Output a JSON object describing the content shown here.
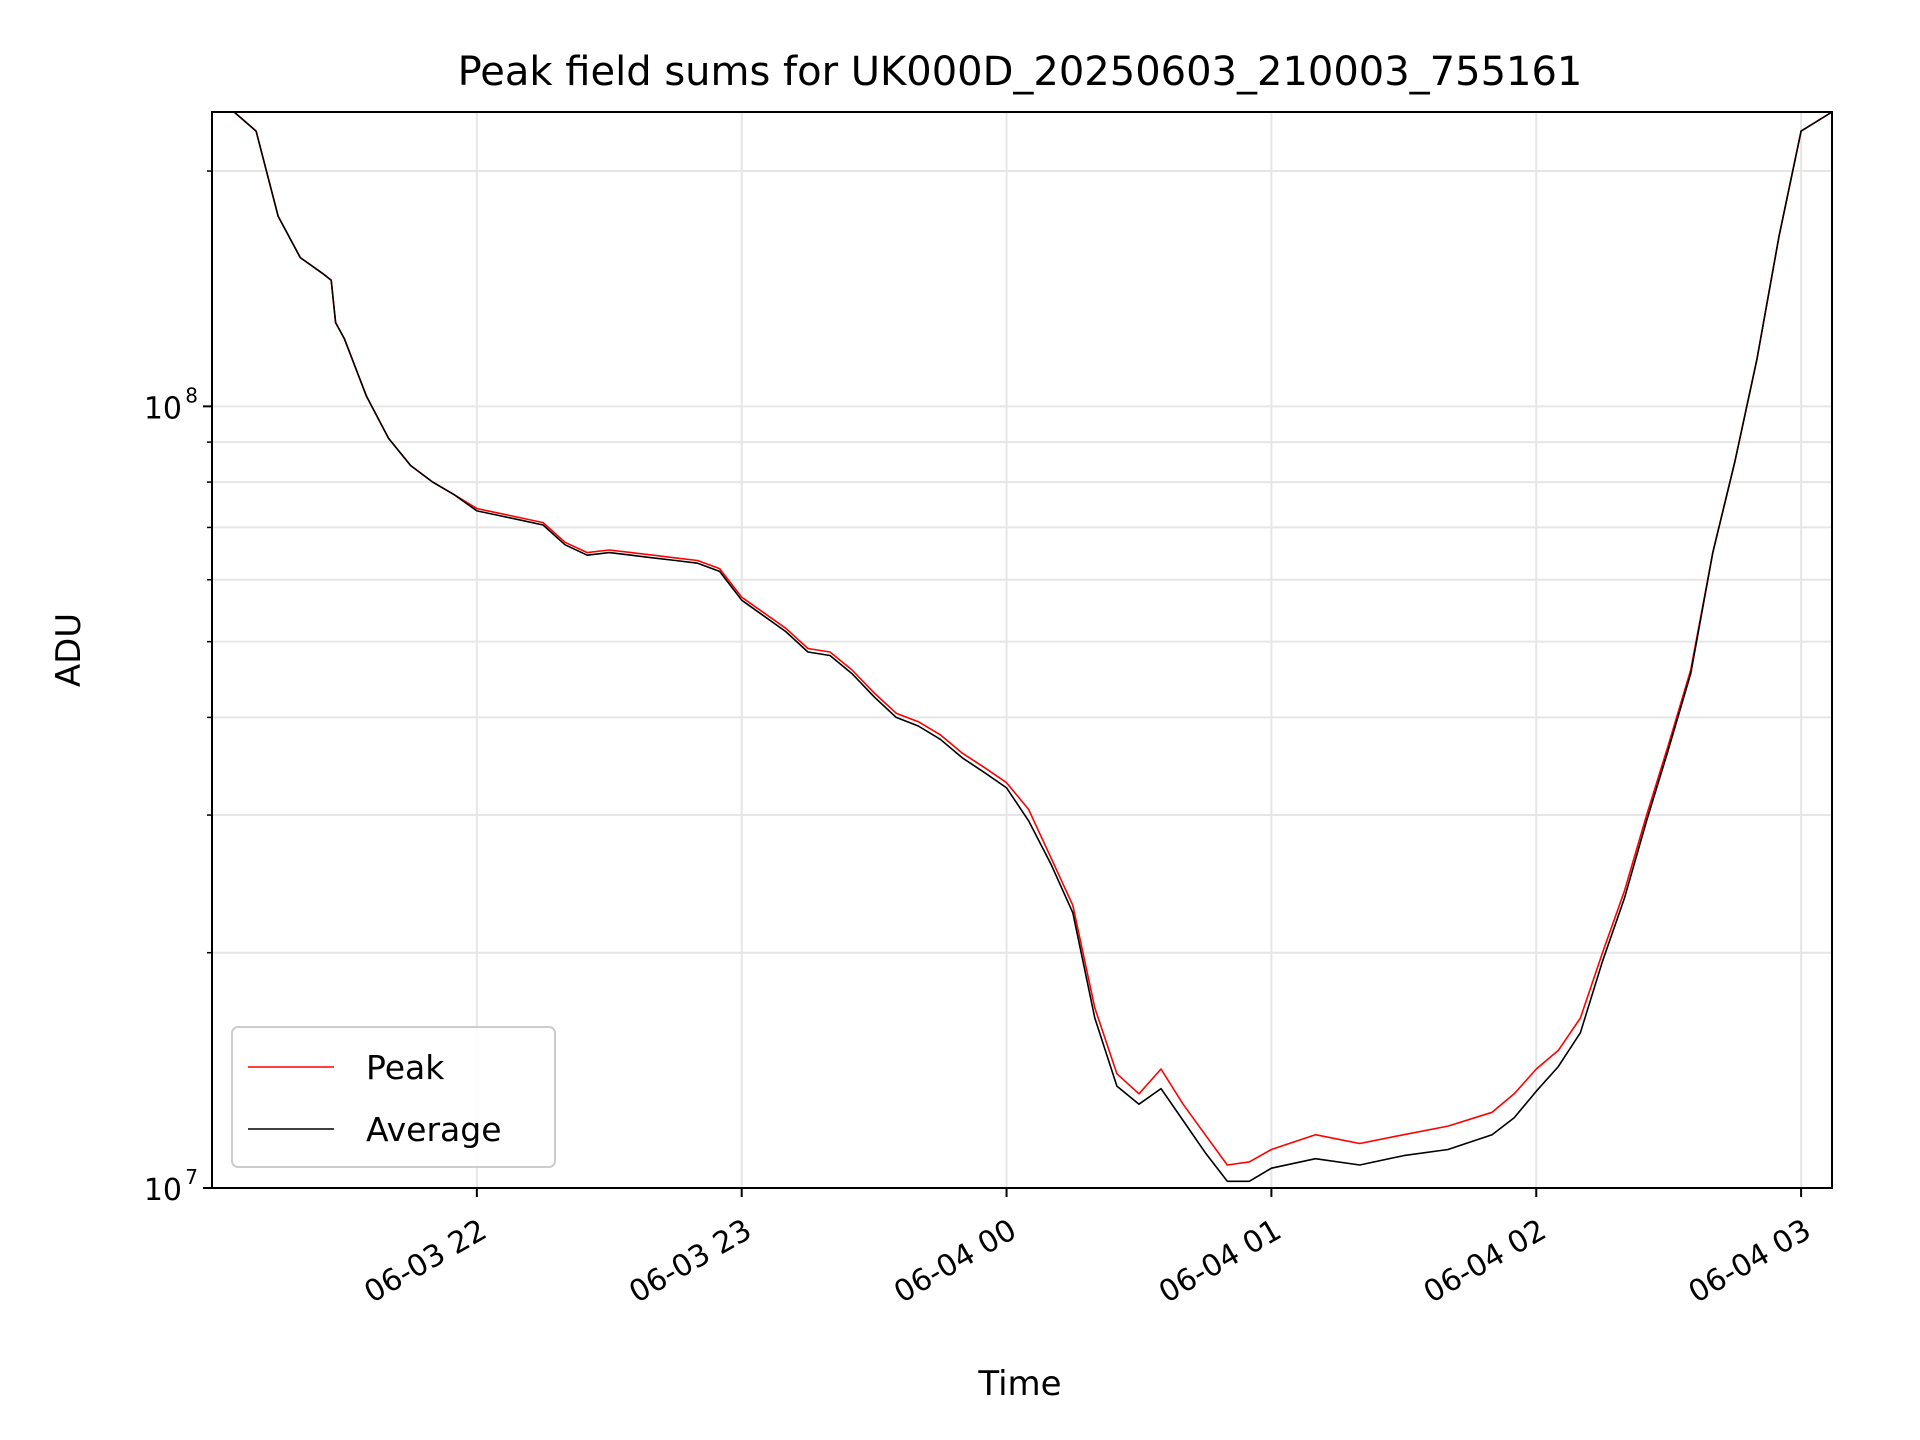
{
  "chart_data": {
    "type": "line",
    "title": "Peak field sums for UK000D_20250603_210003_755161",
    "xlabel": "Time",
    "ylabel": "ADU",
    "y_scale": "log",
    "ylim": [
      10000000,
      238000000
    ],
    "xlim": [
      "2025-06-03 21:00",
      "2025-06-04 03:07"
    ],
    "grid": true,
    "legend_position": "lower-left",
    "x_ticks": [
      {
        "label": "06-03 22",
        "time": "2025-06-03 22:00"
      },
      {
        "label": "06-03 23",
        "time": "2025-06-03 23:00"
      },
      {
        "label": "06-04 00",
        "time": "2025-06-04 00:00"
      },
      {
        "label": "06-04 01",
        "time": "2025-06-04 01:00"
      },
      {
        "label": "06-04 02",
        "time": "2025-06-04 02:00"
      },
      {
        "label": "06-04 03",
        "time": "2025-06-04 03:00"
      }
    ],
    "y_ticks": [
      {
        "base": "10",
        "exp": "7",
        "value": 10000000
      },
      {
        "base": "10",
        "exp": "8",
        "value": 100000000
      }
    ],
    "series": [
      {
        "name": "Peak",
        "color": "#ff0000",
        "x": [
          "2025-06-03 21:00",
          "2025-06-03 21:05",
          "2025-06-03 21:10",
          "2025-06-03 21:15",
          "2025-06-03 21:20",
          "2025-06-03 21:25",
          "2025-06-03 21:27",
          "2025-06-03 21:28",
          "2025-06-03 21:30",
          "2025-06-03 21:35",
          "2025-06-03 21:40",
          "2025-06-03 21:45",
          "2025-06-03 21:50",
          "2025-06-03 21:55",
          "2025-06-03 22:00",
          "2025-06-03 22:05",
          "2025-06-03 22:10",
          "2025-06-03 22:15",
          "2025-06-03 22:20",
          "2025-06-03 22:25",
          "2025-06-03 22:30",
          "2025-06-03 22:35",
          "2025-06-03 22:40",
          "2025-06-03 22:45",
          "2025-06-03 22:50",
          "2025-06-03 22:55",
          "2025-06-03 23:00",
          "2025-06-03 23:10",
          "2025-06-03 23:15",
          "2025-06-03 23:20",
          "2025-06-03 23:25",
          "2025-06-03 23:30",
          "2025-06-03 23:35",
          "2025-06-03 23:40",
          "2025-06-03 23:45",
          "2025-06-03 23:50",
          "2025-06-03 23:55",
          "2025-06-04 00:00",
          "2025-06-04 00:05",
          "2025-06-04 00:10",
          "2025-06-04 00:15",
          "2025-06-04 00:20",
          "2025-06-04 00:25",
          "2025-06-04 00:30",
          "2025-06-04 00:35",
          "2025-06-04 00:40",
          "2025-06-04 00:45",
          "2025-06-04 00:50",
          "2025-06-04 00:55",
          "2025-06-04 01:00",
          "2025-06-04 01:10",
          "2025-06-04 01:20",
          "2025-06-04 01:30",
          "2025-06-04 01:40",
          "2025-06-04 01:50",
          "2025-06-04 01:55",
          "2025-06-04 02:00",
          "2025-06-04 02:05",
          "2025-06-04 02:10",
          "2025-06-04 02:15",
          "2025-06-04 02:20",
          "2025-06-04 02:25",
          "2025-06-04 02:30",
          "2025-06-04 02:35",
          "2025-06-04 02:40",
          "2025-06-04 02:45",
          "2025-06-04 02:50",
          "2025-06-04 02:55",
          "2025-06-04 03:00",
          "2025-06-04 03:07"
        ],
        "y": [
          238000000,
          238000000,
          225000000,
          175000000,
          155000000,
          148000000,
          145000000,
          128000000,
          122000000,
          103000000,
          91000000,
          84000000,
          80000000,
          77000000,
          74000000,
          73000000,
          72000000,
          71000000,
          67000000,
          65000000,
          65500000,
          65000000,
          64500000,
          64000000,
          63500000,
          62000000,
          57000000,
          52000000,
          49000000,
          48500000,
          46000000,
          43000000,
          40500000,
          39500000,
          38000000,
          36000000,
          34500000,
          33000000,
          30500000,
          26500000,
          23000000,
          17000000,
          14000000,
          13200000,
          14200000,
          12800000,
          11700000,
          10700000,
          10800000,
          11200000,
          11700000,
          11400000,
          11700000,
          12000000,
          12500000,
          13200000,
          14200000,
          15000000,
          16500000,
          20000000,
          24000000,
          30000000,
          37000000,
          46000000,
          65000000,
          85000000,
          115000000,
          165000000,
          225000000,
          238000000
        ]
      },
      {
        "name": "Average",
        "color": "#000000",
        "x": [
          "2025-06-03 21:00",
          "2025-06-03 21:05",
          "2025-06-03 21:10",
          "2025-06-03 21:15",
          "2025-06-03 21:20",
          "2025-06-03 21:25",
          "2025-06-03 21:27",
          "2025-06-03 21:28",
          "2025-06-03 21:30",
          "2025-06-03 21:35",
          "2025-06-03 21:40",
          "2025-06-03 21:45",
          "2025-06-03 21:50",
          "2025-06-03 21:55",
          "2025-06-03 22:00",
          "2025-06-03 22:05",
          "2025-06-03 22:10",
          "2025-06-03 22:15",
          "2025-06-03 22:20",
          "2025-06-03 22:25",
          "2025-06-03 22:30",
          "2025-06-03 22:35",
          "2025-06-03 22:40",
          "2025-06-03 22:45",
          "2025-06-03 22:50",
          "2025-06-03 22:55",
          "2025-06-03 23:00",
          "2025-06-03 23:10",
          "2025-06-03 23:15",
          "2025-06-03 23:20",
          "2025-06-03 23:25",
          "2025-06-03 23:30",
          "2025-06-03 23:35",
          "2025-06-03 23:40",
          "2025-06-03 23:45",
          "2025-06-03 23:50",
          "2025-06-03 23:55",
          "2025-06-04 00:00",
          "2025-06-04 00:05",
          "2025-06-04 00:10",
          "2025-06-04 00:15",
          "2025-06-04 00:20",
          "2025-06-04 00:25",
          "2025-06-04 00:30",
          "2025-06-04 00:35",
          "2025-06-04 00:40",
          "2025-06-04 00:45",
          "2025-06-04 00:50",
          "2025-06-04 00:55",
          "2025-06-04 01:00",
          "2025-06-04 01:10",
          "2025-06-04 01:20",
          "2025-06-04 01:30",
          "2025-06-04 01:40",
          "2025-06-04 01:50",
          "2025-06-04 01:55",
          "2025-06-04 02:00",
          "2025-06-04 02:05",
          "2025-06-04 02:10",
          "2025-06-04 02:15",
          "2025-06-04 02:20",
          "2025-06-04 02:25",
          "2025-06-04 02:30",
          "2025-06-04 02:35",
          "2025-06-04 02:40",
          "2025-06-04 02:45",
          "2025-06-04 02:50",
          "2025-06-04 02:55",
          "2025-06-04 03:00",
          "2025-06-04 03:07"
        ],
        "y": [
          238000000,
          238000000,
          225000000,
          175000000,
          155000000,
          148000000,
          145000000,
          128000000,
          122000000,
          103000000,
          91000000,
          84000000,
          80000000,
          77000000,
          73500000,
          72500000,
          71500000,
          70500000,
          66500000,
          64500000,
          65000000,
          64500000,
          64000000,
          63500000,
          63000000,
          61500000,
          56500000,
          51500000,
          48500000,
          48000000,
          45500000,
          42500000,
          40000000,
          39000000,
          37500000,
          35500000,
          34000000,
          32500000,
          29500000,
          26000000,
          22500000,
          16500000,
          13500000,
          12800000,
          13400000,
          12200000,
          11100000,
          10200000,
          10200000,
          10600000,
          10900000,
          10700000,
          11000000,
          11200000,
          11700000,
          12300000,
          13300000,
          14300000,
          15800000,
          19500000,
          23500000,
          29500000,
          36500000,
          45500000,
          65000000,
          85000000,
          115000000,
          165000000,
          225000000,
          238000000
        ]
      }
    ]
  }
}
